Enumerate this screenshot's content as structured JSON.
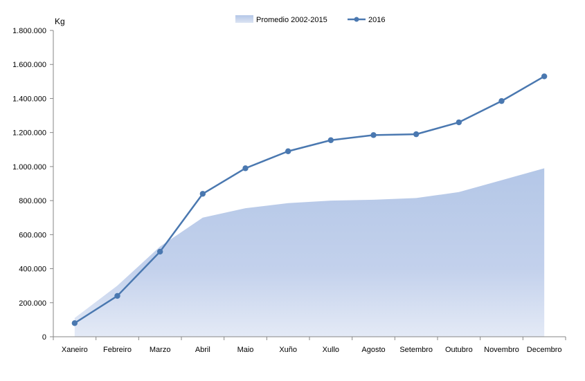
{
  "chart_data": {
    "type": "line",
    "unit_label": "Kg",
    "categories": [
      "Xaneiro",
      "Febreiro",
      "Marzo",
      "Abril",
      "Maio",
      "Xuño",
      "Xullo",
      "Agosto",
      "Setembro",
      "Outubro",
      "Novembro",
      "Decembro"
    ],
    "y_ticks": [
      "0",
      "200.000",
      "400.000",
      "600.000",
      "800.000",
      "1.000.000",
      "1.200.000",
      "1.400.000",
      "1.600.000",
      "1.800.000"
    ],
    "ylim": [
      0,
      1800000
    ],
    "grid": false,
    "legend_position": "top",
    "series": [
      {
        "name": "Promedio 2002-2015",
        "kind": "area",
        "color": "#b4c7e7",
        "values": [
          110000,
          300000,
          530000,
          700000,
          755000,
          785000,
          800000,
          805000,
          815000,
          850000,
          920000,
          990000
        ]
      },
      {
        "name": "2016",
        "kind": "line",
        "color": "#4a78b0",
        "values": [
          80000,
          240000,
          500000,
          840000,
          990000,
          1090000,
          1155000,
          1185000,
          1190000,
          1260000,
          1385000,
          1530000
        ]
      }
    ]
  }
}
